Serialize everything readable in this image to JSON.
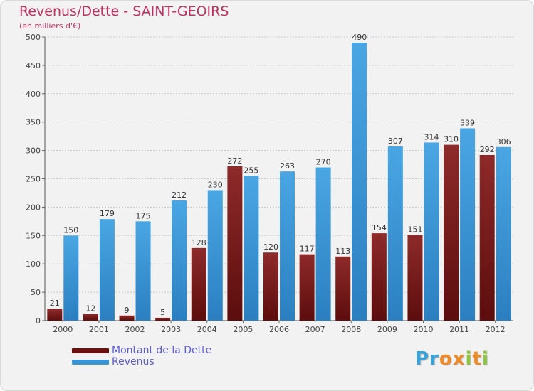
{
  "header": {
    "title": "Revenus/Dette - SAINT-GEOIRS",
    "subtitle": "(en milliers d'€)"
  },
  "colors": {
    "dette": "#7b1a1a",
    "revenus": "#3a95d6",
    "title": "#c0305f"
  },
  "logo": {
    "text": "Proxiti",
    "letters": [
      "P",
      "r",
      "o",
      "x",
      "i",
      "t",
      "i"
    ],
    "letter_colors": [
      "#3aa3d9",
      "#3aa3d9",
      "#f08a24",
      "#f08a24",
      "#8cc63f",
      "#f08a24",
      "#8cc63f"
    ]
  },
  "chart_data": {
    "type": "bar",
    "title": "Revenus/Dette - SAINT-GEOIRS",
    "subtitle": "(en milliers d'€)",
    "categories": [
      "2000",
      "2001",
      "2002",
      "2003",
      "2004",
      "2005",
      "2006",
      "2007",
      "2008",
      "2009",
      "2010",
      "2011",
      "2012"
    ],
    "series": [
      {
        "name": "Montant de la Dette",
        "values": [
          21,
          12,
          9,
          5,
          128,
          272,
          120,
          117,
          113,
          154,
          151,
          310,
          292
        ]
      },
      {
        "name": "Revenus",
        "values": [
          150,
          179,
          175,
          212,
          230,
          255,
          263,
          270,
          490,
          307,
          314,
          339,
          306
        ]
      }
    ],
    "ylim": [
      0,
      500
    ],
    "yticks": [
      0,
      50,
      100,
      150,
      200,
      250,
      300,
      350,
      400,
      450,
      500
    ],
    "grid": true,
    "legend_position": "bottom-left"
  }
}
